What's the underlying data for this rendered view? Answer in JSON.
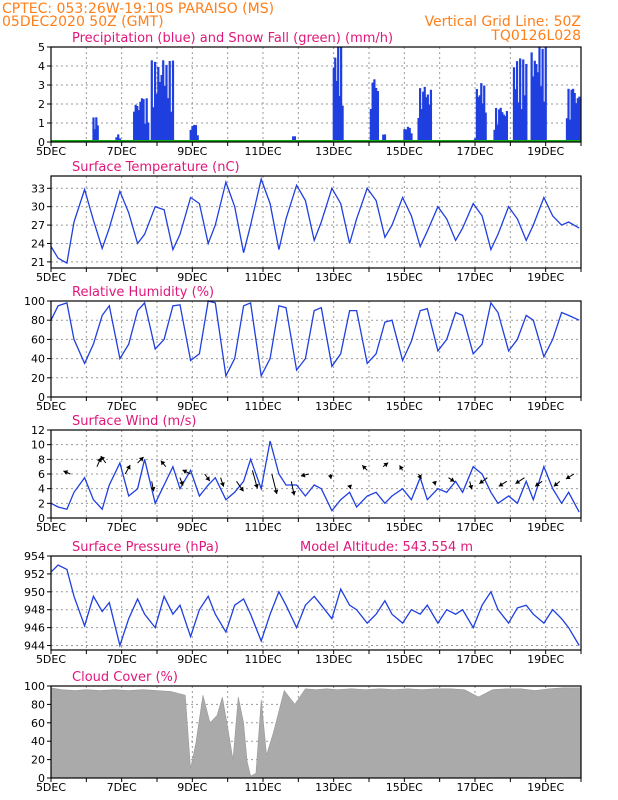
{
  "header": {
    "line1_left": "CPTEC:   053:26W-19:10S   PARAISO (MS)",
    "line2_left": "05DEC2020 50Z (GMT)",
    "line2_right": "Vertical Grid Line: 50Z",
    "line3_right": "TQ0126L028"
  },
  "colors": {
    "header": "#ff7f1a",
    "title": "#e0177a",
    "line": "#1f3fe0",
    "snow": "#14a814",
    "cloud": "#aaaaaa"
  },
  "x_axis": {
    "labels": [
      "5DEC",
      "7DEC",
      "9DEC",
      "11DEC",
      "13DEC",
      "15DEC",
      "17DEC",
      "19DEC"
    ],
    "day_start": 5,
    "day_end": 20
  },
  "chart_data": [
    {
      "type": "bar",
      "title": "Precipitation (blue) and Snow Fall (green) (mm/h)",
      "ylim": [
        0,
        5
      ],
      "yticks": [
        0,
        1,
        2,
        3,
        4,
        5
      ],
      "snow_line": 0,
      "rain_events": [
        {
          "start": 6.2,
          "end": 6.32,
          "peak": 1.3
        },
        {
          "start": 6.85,
          "end": 6.95,
          "peak": 0.4
        },
        {
          "start": 7.35,
          "end": 7.75,
          "peak": 2.3
        },
        {
          "start": 7.85,
          "end": 8.45,
          "peak": 4.3
        },
        {
          "start": 8.95,
          "end": 9.15,
          "peak": 0.9
        },
        {
          "start": 11.2,
          "end": 11.25,
          "peak": 0.1
        },
        {
          "start": 11.85,
          "end": 11.9,
          "peak": 0.3
        },
        {
          "start": 13.0,
          "end": 13.25,
          "peak": 5.0
        },
        {
          "start": 14.05,
          "end": 14.25,
          "peak": 3.3
        },
        {
          "start": 14.4,
          "end": 14.45,
          "peak": 0.4
        },
        {
          "start": 15.0,
          "end": 15.2,
          "peak": 0.8
        },
        {
          "start": 15.4,
          "end": 15.75,
          "peak": 2.9
        },
        {
          "start": 17.0,
          "end": 17.05,
          "peak": 0.2
        },
        {
          "start": 17.05,
          "end": 17.3,
          "peak": 3.1
        },
        {
          "start": 17.55,
          "end": 17.9,
          "peak": 1.8
        },
        {
          "start": 18.1,
          "end": 18.45,
          "peak": 4.4
        },
        {
          "start": 18.6,
          "end": 19.0,
          "peak": 5.0
        },
        {
          "start": 19.6,
          "end": 19.95,
          "peak": 2.8
        }
      ]
    },
    {
      "type": "line",
      "title": "Surface Temperature (nC)",
      "ylim": [
        20,
        35
      ],
      "yticks": [
        21,
        24,
        27,
        30,
        33
      ],
      "x": [
        5.0,
        5.2,
        5.45,
        5.65,
        5.95,
        6.2,
        6.45,
        6.65,
        6.95,
        7.2,
        7.45,
        7.65,
        7.95,
        8.2,
        8.45,
        8.65,
        8.95,
        9.2,
        9.45,
        9.65,
        9.95,
        10.2,
        10.45,
        10.65,
        10.95,
        11.2,
        11.45,
        11.65,
        11.95,
        12.2,
        12.45,
        12.65,
        12.95,
        13.2,
        13.45,
        13.65,
        13.95,
        14.2,
        14.45,
        14.65,
        14.95,
        15.2,
        15.45,
        15.65,
        15.95,
        16.2,
        16.45,
        16.65,
        16.95,
        17.2,
        17.45,
        17.65,
        17.95,
        18.2,
        18.45,
        18.65,
        18.95,
        19.2,
        19.45,
        19.65,
        19.95
      ],
      "y": [
        23.5,
        21.6,
        20.8,
        27.5,
        32.8,
        27.8,
        23.2,
        26.5,
        32.5,
        29.0,
        24.0,
        25.5,
        30.0,
        29.5,
        23.0,
        25.5,
        31.5,
        30.5,
        24.0,
        27.0,
        34.0,
        30.0,
        22.5,
        27.0,
        34.5,
        30.5,
        23.0,
        28.0,
        33.5,
        31.0,
        24.5,
        27.5,
        33.0,
        30.5,
        24.0,
        28.0,
        33.0,
        31.0,
        25.0,
        27.0,
        31.5,
        28.5,
        23.5,
        26.0,
        30.0,
        28.0,
        24.5,
        26.5,
        30.5,
        28.5,
        23.0,
        25.5,
        30.0,
        28.0,
        24.5,
        27.0,
        31.5,
        28.5,
        27.0,
        27.5,
        26.5
      ]
    },
    {
      "type": "line",
      "title": "Relative Humidity (%)",
      "ylim": [
        0,
        100
      ],
      "yticks": [
        0,
        20,
        40,
        60,
        80,
        100
      ],
      "x": [
        5.0,
        5.2,
        5.45,
        5.65,
        5.95,
        6.2,
        6.45,
        6.65,
        6.95,
        7.2,
        7.45,
        7.65,
        7.95,
        8.2,
        8.45,
        8.65,
        8.95,
        9.2,
        9.45,
        9.65,
        9.95,
        10.2,
        10.45,
        10.65,
        10.95,
        11.2,
        11.45,
        11.65,
        11.95,
        12.2,
        12.45,
        12.65,
        12.95,
        13.2,
        13.45,
        13.65,
        13.95,
        14.2,
        14.45,
        14.65,
        14.95,
        15.2,
        15.45,
        15.65,
        15.95,
        16.2,
        16.45,
        16.65,
        16.95,
        17.2,
        17.45,
        17.65,
        17.95,
        18.2,
        18.45,
        18.65,
        18.95,
        19.2,
        19.45,
        19.65,
        19.95
      ],
      "y": [
        80,
        95,
        98,
        60,
        35,
        55,
        85,
        95,
        40,
        55,
        90,
        98,
        50,
        60,
        95,
        96,
        38,
        45,
        100,
        98,
        22,
        40,
        95,
        98,
        22,
        40,
        95,
        93,
        28,
        40,
        90,
        93,
        32,
        45,
        90,
        90,
        35,
        45,
        78,
        80,
        38,
        58,
        90,
        92,
        48,
        60,
        88,
        85,
        45,
        55,
        98,
        88,
        48,
        60,
        85,
        80,
        42,
        60,
        88,
        85,
        80
      ]
    },
    {
      "type": "line",
      "title": "Surface Wind (m/s)",
      "ylim": [
        0,
        12
      ],
      "yticks": [
        0,
        2,
        4,
        6,
        8,
        10,
        12
      ],
      "x": [
        5.0,
        5.2,
        5.45,
        5.65,
        5.95,
        6.2,
        6.45,
        6.65,
        6.95,
        7.2,
        7.45,
        7.65,
        7.95,
        8.2,
        8.45,
        8.65,
        8.95,
        9.2,
        9.45,
        9.65,
        9.95,
        10.2,
        10.45,
        10.65,
        10.95,
        11.2,
        11.45,
        11.65,
        11.95,
        12.2,
        12.45,
        12.65,
        12.95,
        13.2,
        13.45,
        13.65,
        13.95,
        14.2,
        14.45,
        14.65,
        14.95,
        15.2,
        15.45,
        15.65,
        15.95,
        16.2,
        16.45,
        16.65,
        16.95,
        17.2,
        17.45,
        17.65,
        17.95,
        18.2,
        18.45,
        18.65,
        18.95,
        19.2,
        19.45,
        19.65,
        19.95
      ],
      "y": [
        2.0,
        1.5,
        1.2,
        3.5,
        5.5,
        2.5,
        1.2,
        4.5,
        7.5,
        3.0,
        4.0,
        8.0,
        2.0,
        4.5,
        7.0,
        4.0,
        6.5,
        3.0,
        4.5,
        5.5,
        2.5,
        3.5,
        5.0,
        8.0,
        4.0,
        10.5,
        6.0,
        4.5,
        4.5,
        3.0,
        4.5,
        4.0,
        1.0,
        2.5,
        3.5,
        1.5,
        3.0,
        3.5,
        2.0,
        3.0,
        4.0,
        2.5,
        5.5,
        2.5,
        4.0,
        3.5,
        5.0,
        3.5,
        7.0,
        6.0,
        3.5,
        2.0,
        3.0,
        2.0,
        5.0,
        2.5,
        7.0,
        4.0,
        2.0,
        3.5,
        0.8
      ],
      "arrows": [
        {
          "day": 5.55,
          "speed": 6.0,
          "dx": -7,
          "dy": -3
        },
        {
          "day": 6.3,
          "speed": 7.0,
          "dx": 4,
          "dy": -9
        },
        {
          "day": 6.55,
          "speed": 7.5,
          "dx": -5,
          "dy": -7
        },
        {
          "day": 7.1,
          "speed": 6.0,
          "dx": 5,
          "dy": -9
        },
        {
          "day": 7.45,
          "speed": 7.5,
          "dx": 6,
          "dy": -6
        },
        {
          "day": 7.85,
          "speed": 5.0,
          "dx": 2,
          "dy": 10
        },
        {
          "day": 8.25,
          "speed": 7.0,
          "dx": -5,
          "dy": -6
        },
        {
          "day": 8.65,
          "speed": 5.5,
          "dx": 3,
          "dy": 8
        },
        {
          "day": 8.95,
          "speed": 6.0,
          "dx": -8,
          "dy": -4
        },
        {
          "day": 9.35,
          "speed": 6.0,
          "dx": 5,
          "dy": 7
        },
        {
          "day": 9.8,
          "speed": 5.5,
          "dx": 3,
          "dy": 9
        },
        {
          "day": 10.25,
          "speed": 5.0,
          "dx": 7,
          "dy": 10
        },
        {
          "day": 10.7,
          "speed": 6.5,
          "dx": 5,
          "dy": 18
        },
        {
          "day": 11.25,
          "speed": 6.0,
          "dx": 5,
          "dy": 20
        },
        {
          "day": 11.8,
          "speed": 5.0,
          "dx": 3,
          "dy": 14
        },
        {
          "day": 12.3,
          "speed": 6.0,
          "dx": -8,
          "dy": 2
        },
        {
          "day": 12.9,
          "speed": 6.0,
          "dx": 1,
          "dy": 5
        },
        {
          "day": 13.45,
          "speed": 4.5,
          "dx": 1,
          "dy": 4
        },
        {
          "day": 13.95,
          "speed": 6.5,
          "dx": -5,
          "dy": -5
        },
        {
          "day": 14.4,
          "speed": 7.0,
          "dx": 5,
          "dy": -4
        },
        {
          "day": 14.95,
          "speed": 6.5,
          "dx": -3,
          "dy": -5
        },
        {
          "day": 15.4,
          "speed": 6.0,
          "dx": 3,
          "dy": 5
        },
        {
          "day": 15.85,
          "speed": 5.0,
          "dx": 1,
          "dy": 4
        },
        {
          "day": 16.25,
          "speed": 5.5,
          "dx": 6,
          "dy": 4
        },
        {
          "day": 16.85,
          "speed": 5.0,
          "dx": 2,
          "dy": 8
        },
        {
          "day": 17.35,
          "speed": 5.5,
          "dx": -8,
          "dy": 6
        },
        {
          "day": 17.9,
          "speed": 5.0,
          "dx": -8,
          "dy": 5
        },
        {
          "day": 18.4,
          "speed": 5.5,
          "dx": -9,
          "dy": 6
        },
        {
          "day": 18.9,
          "speed": 5.0,
          "dx": -7,
          "dy": 5
        },
        {
          "day": 19.4,
          "speed": 5.0,
          "dx": -6,
          "dy": 5
        },
        {
          "day": 19.8,
          "speed": 6.0,
          "dx": -8,
          "dy": 5
        }
      ]
    },
    {
      "type": "line",
      "title": "Surface Pressure (hPa)",
      "annotation": "Model Altitude: 543.554  m",
      "ylim": [
        943.5,
        954
      ],
      "yticks": [
        944,
        946,
        948,
        950,
        952,
        954
      ],
      "x": [
        5.0,
        5.2,
        5.45,
        5.65,
        5.95,
        6.2,
        6.45,
        6.65,
        6.95,
        7.2,
        7.45,
        7.65,
        7.95,
        8.2,
        8.45,
        8.65,
        8.95,
        9.2,
        9.45,
        9.65,
        9.95,
        10.2,
        10.45,
        10.65,
        10.95,
        11.2,
        11.45,
        11.65,
        11.95,
        12.2,
        12.45,
        12.65,
        12.95,
        13.2,
        13.45,
        13.65,
        13.95,
        14.2,
        14.45,
        14.65,
        14.95,
        15.2,
        15.45,
        15.65,
        15.95,
        16.2,
        16.45,
        16.65,
        16.95,
        17.2,
        17.45,
        17.65,
        17.95,
        18.2,
        18.45,
        18.65,
        18.95,
        19.2,
        19.45,
        19.65,
        19.95
      ],
      "y": [
        952.2,
        953.0,
        952.5,
        949.5,
        946.2,
        949.5,
        947.8,
        948.8,
        944.0,
        947.0,
        949.2,
        947.5,
        946.0,
        949.5,
        947.5,
        948.5,
        945.0,
        948.0,
        949.5,
        947.5,
        945.5,
        948.5,
        949.2,
        947.5,
        944.5,
        947.5,
        950.0,
        948.5,
        946.0,
        948.5,
        949.5,
        948.5,
        947.0,
        950.3,
        948.5,
        948.0,
        946.5,
        947.5,
        949.0,
        947.5,
        946.5,
        948.0,
        947.5,
        948.5,
        946.5,
        948.0,
        947.5,
        948.0,
        946.0,
        948.5,
        950.0,
        948.0,
        946.5,
        948.2,
        948.5,
        947.5,
        946.5,
        948.0,
        947.0,
        946.0,
        944.0
      ]
    },
    {
      "type": "area",
      "title": "Cloud Cover (%)",
      "ylim": [
        0,
        100
      ],
      "yticks": [
        0,
        20,
        40,
        60,
        80,
        100
      ],
      "x": [
        5.0,
        5.3,
        5.7,
        6.0,
        6.4,
        6.8,
        7.2,
        7.6,
        8.0,
        8.4,
        8.8,
        8.95,
        9.1,
        9.3,
        9.5,
        9.7,
        9.85,
        10.0,
        10.15,
        10.3,
        10.45,
        10.55,
        10.65,
        10.8,
        10.95,
        11.1,
        11.3,
        11.6,
        11.9,
        12.2,
        12.5,
        12.8,
        13.1,
        13.5,
        13.9,
        14.3,
        14.7,
        15.1,
        15.5,
        15.9,
        16.3,
        16.7,
        17.1,
        17.5,
        17.9,
        18.3,
        18.7,
        19.1,
        19.5,
        20.0
      ],
      "y": [
        98,
        96,
        95,
        96,
        95,
        96,
        95,
        96,
        95,
        94,
        90,
        10,
        38,
        90,
        60,
        68,
        88,
        55,
        20,
        88,
        60,
        18,
        2,
        5,
        85,
        25,
        50,
        95,
        80,
        97,
        96,
        97,
        96,
        97,
        96,
        97,
        96,
        97,
        96,
        97,
        97,
        96,
        88,
        96,
        97,
        97,
        95,
        97,
        98,
        98
      ]
    }
  ]
}
